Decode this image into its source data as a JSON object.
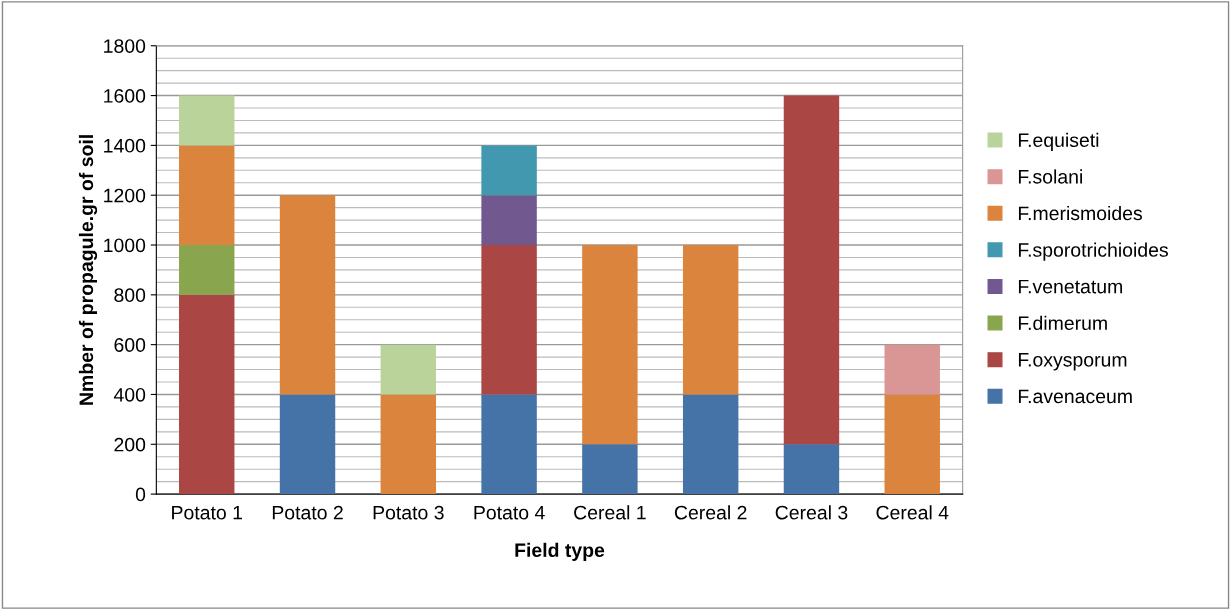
{
  "chart_data": {
    "type": "bar",
    "stacked": true,
    "xlabel": "Field type",
    "ylabel": "Nmber of propagule.gr of soil",
    "categories": [
      "Potato 1",
      "Potato 2",
      "Potato 3",
      "Potato 4",
      "Cereal 1",
      "Cereal 2",
      "Cereal 3",
      "Cereal 4"
    ],
    "series": [
      {
        "name": "F.avenaceum",
        "color": "#4572a7",
        "values": [
          0,
          400,
          0,
          400,
          200,
          400,
          200,
          0
        ]
      },
      {
        "name": "F.oxysporum",
        "color": "#aa4643",
        "values": [
          800,
          0,
          0,
          600,
          0,
          0,
          1400,
          0
        ]
      },
      {
        "name": "F.dimerum",
        "color": "#89a54e",
        "values": [
          200,
          0,
          0,
          0,
          0,
          0,
          0,
          0
        ]
      },
      {
        "name": "F.venetatum",
        "color": "#71588f",
        "values": [
          0,
          0,
          0,
          200,
          0,
          0,
          0,
          0
        ]
      },
      {
        "name": "F.sporotrichioides",
        "color": "#4198af",
        "values": [
          0,
          0,
          0,
          200,
          0,
          0,
          0,
          0
        ]
      },
      {
        "name": "F.merismoides",
        "color": "#db843d",
        "values": [
          400,
          800,
          400,
          0,
          800,
          600,
          0,
          400
        ]
      },
      {
        "name": "F.solani",
        "color": "#d99694",
        "values": [
          0,
          0,
          0,
          0,
          0,
          0,
          0,
          200
        ]
      },
      {
        "name": "F.equiseti",
        "color": "#b9d39b",
        "values": [
          200,
          0,
          200,
          0,
          0,
          0,
          0,
          0
        ]
      }
    ],
    "ylim": [
      0,
      1800
    ],
    "yticks": [
      0,
      200,
      400,
      600,
      800,
      1000,
      1200,
      1400,
      1600,
      1800
    ],
    "grid": "y",
    "legend": "right"
  }
}
